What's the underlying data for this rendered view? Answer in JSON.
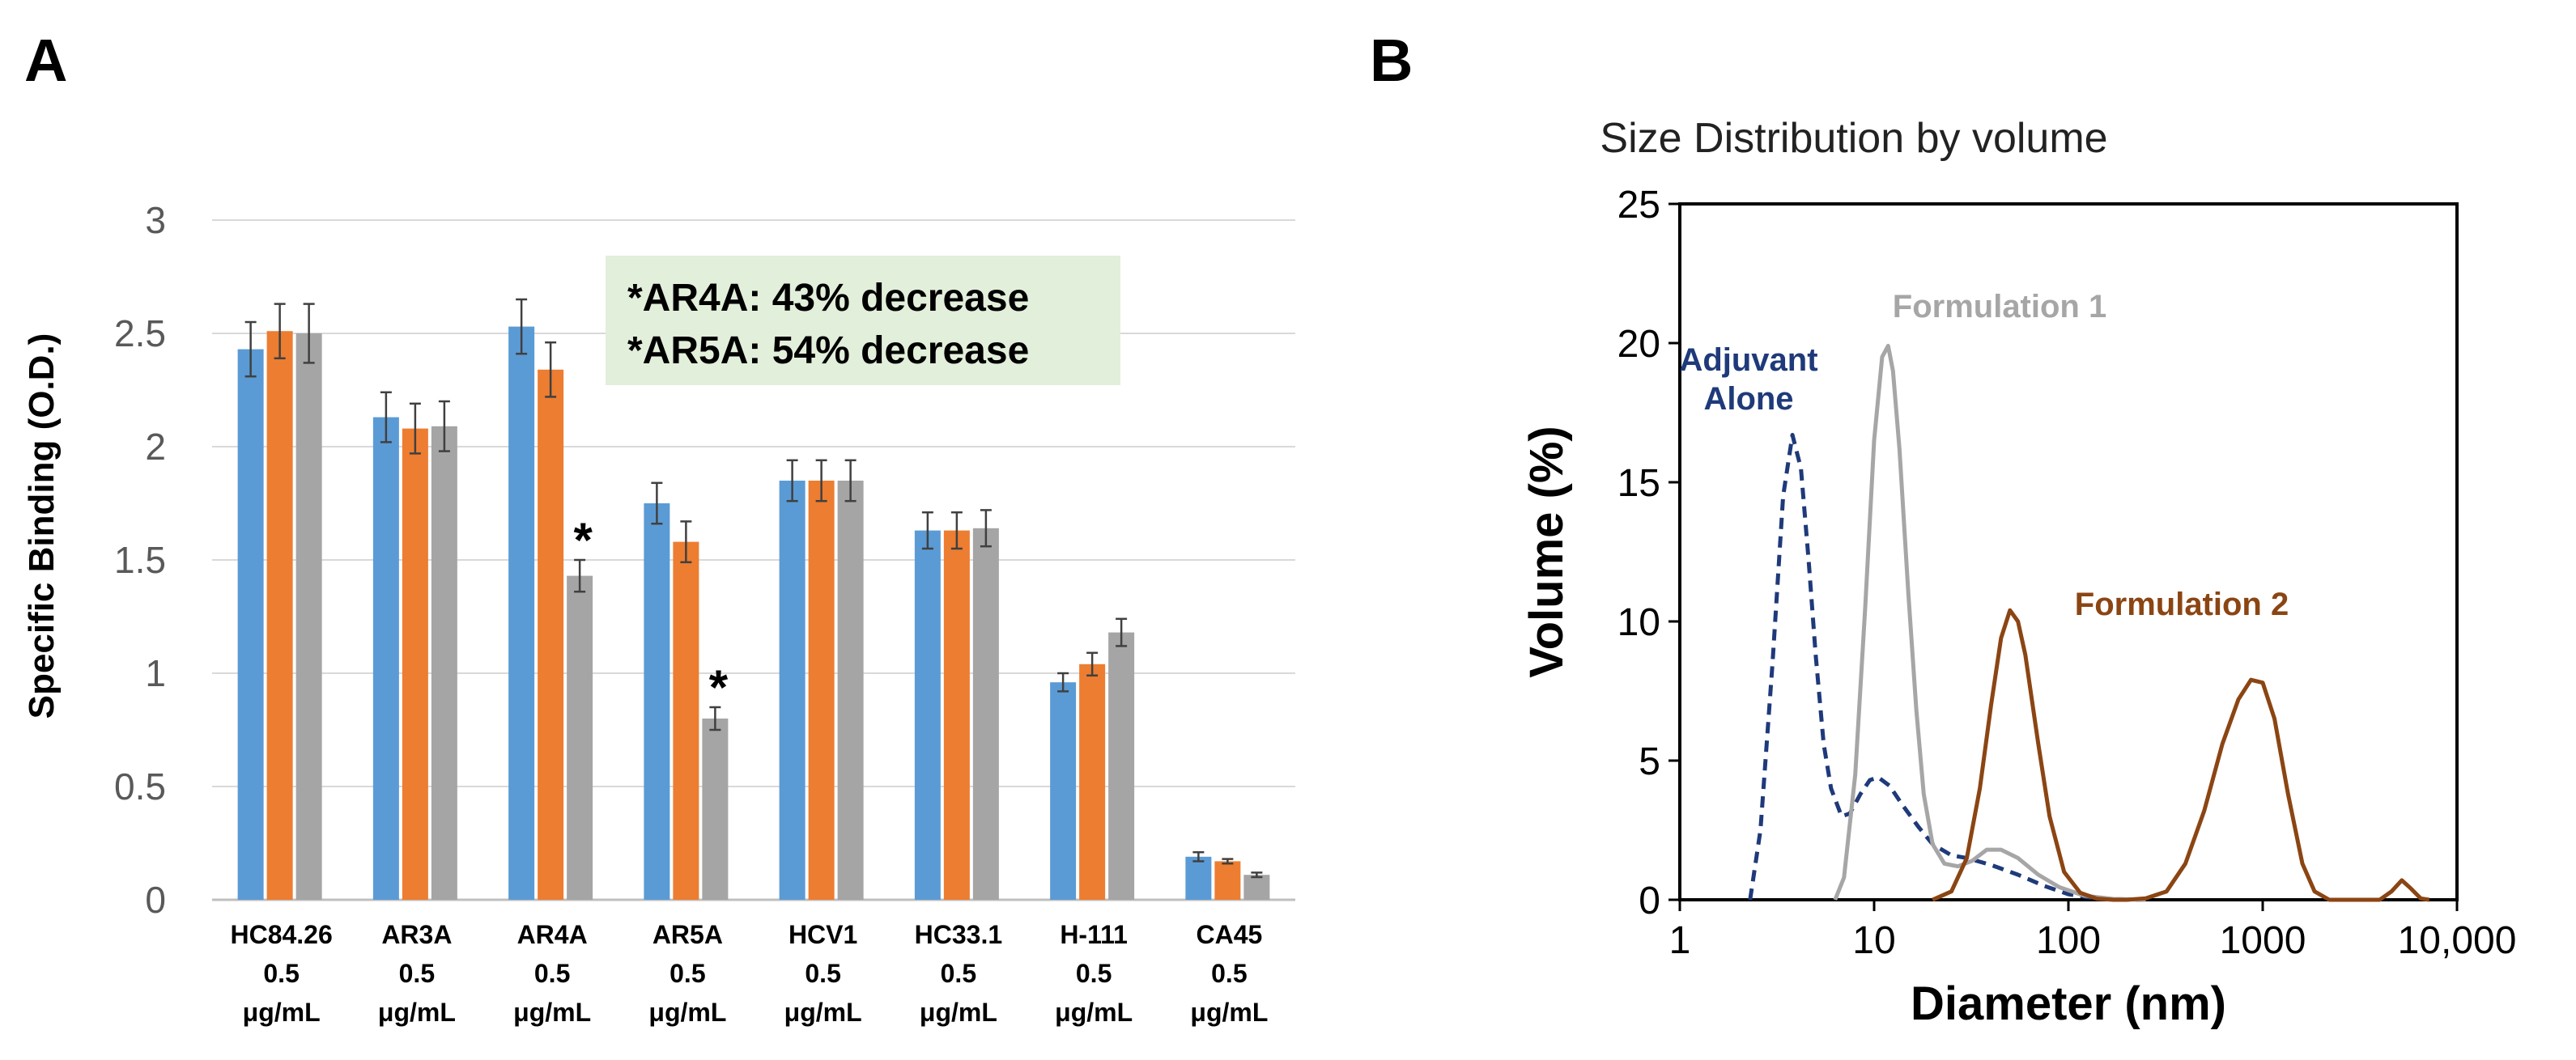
{
  "panels": {
    "a": "A",
    "b": "B"
  },
  "chart_data": [
    {
      "type": "bar",
      "title": "",
      "xlabel": "",
      "ylabel": "Specific Binding (O.D.)",
      "ylim": [
        0,
        3
      ],
      "yticks": [
        "0",
        "0.5",
        "1",
        "1.5",
        "2",
        "2.5",
        "3"
      ],
      "grid": true,
      "categories": [
        {
          "name": "HC84.26",
          "conc": "0.5",
          "unit": "μg/mL"
        },
        {
          "name": "AR3A",
          "conc": "0.5",
          "unit": "μg/mL"
        },
        {
          "name": "AR4A",
          "conc": "0.5",
          "unit": "μg/mL"
        },
        {
          "name": "AR5A",
          "conc": "0.5",
          "unit": "μg/mL"
        },
        {
          "name": "HCV1",
          "conc": "0.5",
          "unit": "μg/mL"
        },
        {
          "name": "HC33.1",
          "conc": "0.5",
          "unit": "μg/mL"
        },
        {
          "name": "H-111",
          "conc": "0.5",
          "unit": "μg/mL"
        },
        {
          "name": "CA45",
          "conc": "0.5",
          "unit": "μg/mL"
        }
      ],
      "series": [
        {
          "color": "#5B9BD5",
          "values": [
            2.43,
            2.13,
            2.53,
            1.75,
            1.85,
            1.63,
            0.96,
            0.19
          ],
          "errors": [
            0.12,
            0.11,
            0.12,
            0.09,
            0.09,
            0.08,
            0.04,
            0.02
          ]
        },
        {
          "color": "#ED7D31",
          "values": [
            2.51,
            2.08,
            2.34,
            1.58,
            1.85,
            1.63,
            1.04,
            0.17
          ],
          "errors": [
            0.12,
            0.11,
            0.12,
            0.09,
            0.09,
            0.08,
            0.05,
            0.01
          ]
        },
        {
          "color": "#A5A5A5",
          "values": [
            2.5,
            2.09,
            1.43,
            0.8,
            1.85,
            1.64,
            1.18,
            0.11
          ],
          "errors": [
            0.13,
            0.11,
            0.07,
            0.05,
            0.09,
            0.08,
            0.06,
            0.01
          ]
        }
      ],
      "significance": [
        {
          "category": 2,
          "series": 2,
          "label": "*"
        },
        {
          "category": 3,
          "series": 2,
          "label": "*"
        }
      ],
      "annotation": [
        "*AR4A: 43% decrease",
        "*AR5A: 54% decrease"
      ],
      "annotation_bg": "#E2EFDA"
    },
    {
      "type": "line",
      "title": "Size Distribution by volume",
      "xlabel": "Diameter (nm)",
      "ylabel": "Volume (%)",
      "xscale": "log",
      "xlim": [
        1,
        10000
      ],
      "ylim": [
        0,
        25
      ],
      "xticks": [
        "1",
        "10",
        "100",
        "1000",
        "10,000"
      ],
      "yticks": [
        "0",
        "5",
        "10",
        "15",
        "20",
        "25"
      ],
      "series": [
        {
          "name": "Adjuvant Alone",
          "label_lines": [
            "Adjuvant",
            "Alone"
          ],
          "color": "#1F3A7A",
          "dash": true,
          "x": [
            2.3,
            2.6,
            3.0,
            3.4,
            3.8,
            4.2,
            4.6,
            5.0,
            5.5,
            6.0,
            6.8,
            7.5,
            8.5,
            9.5,
            10.5,
            12,
            14,
            17,
            20,
            25,
            30,
            40,
            55,
            75,
            100,
            130,
            180,
            250
          ],
          "y": [
            0,
            2.5,
            8.5,
            14.5,
            16.7,
            15.5,
            12.2,
            8.8,
            5.6,
            4.0,
            3.0,
            3.1,
            3.8,
            4.3,
            4.4,
            4.1,
            3.4,
            2.6,
            2.0,
            1.6,
            1.5,
            1.25,
            0.9,
            0.5,
            0.2,
            0.08,
            0.02,
            0
          ]
        },
        {
          "name": "Formulation 1",
          "label_lines": [
            "Formulation 1"
          ],
          "color": "#A6A6A6",
          "dash": false,
          "x": [
            6.3,
            7.0,
            8.0,
            9.0,
            10.0,
            11.0,
            11.8,
            12.5,
            13.5,
            15,
            16.5,
            18,
            20,
            23,
            27,
            32,
            38,
            45,
            55,
            70,
            90,
            120,
            170,
            250
          ],
          "y": [
            0,
            0.8,
            4.5,
            10.5,
            16.5,
            19.5,
            19.9,
            19.0,
            16.2,
            11.0,
            6.8,
            3.8,
            2.0,
            1.3,
            1.2,
            1.4,
            1.8,
            1.8,
            1.5,
            0.9,
            0.45,
            0.15,
            0.03,
            0
          ]
        },
        {
          "name": "Formulation 2",
          "label_lines": [
            "Formulation 2"
          ],
          "color": "#8B4513",
          "dash": false,
          "x": [
            20,
            25,
            30,
            35,
            40,
            45,
            50,
            55,
            60,
            70,
            80,
            95,
            115,
            140,
            170,
            200,
            250,
            320,
            400,
            500,
            620,
            750,
            870,
            1000,
            1150,
            1350,
            1600,
            1850,
            2200,
            2700,
            3300,
            4000,
            4600,
            5200,
            5800,
            6500,
            7200
          ],
          "y": [
            0,
            0.3,
            1.5,
            4.0,
            7.0,
            9.4,
            10.4,
            10.0,
            8.8,
            5.6,
            3.0,
            1.0,
            0.25,
            0.04,
            0,
            0,
            0.05,
            0.3,
            1.3,
            3.2,
            5.6,
            7.2,
            7.9,
            7.8,
            6.5,
            3.8,
            1.3,
            0.3,
            0,
            0,
            0,
            0,
            0.3,
            0.7,
            0.4,
            0.05,
            0
          ]
        }
      ]
    }
  ]
}
